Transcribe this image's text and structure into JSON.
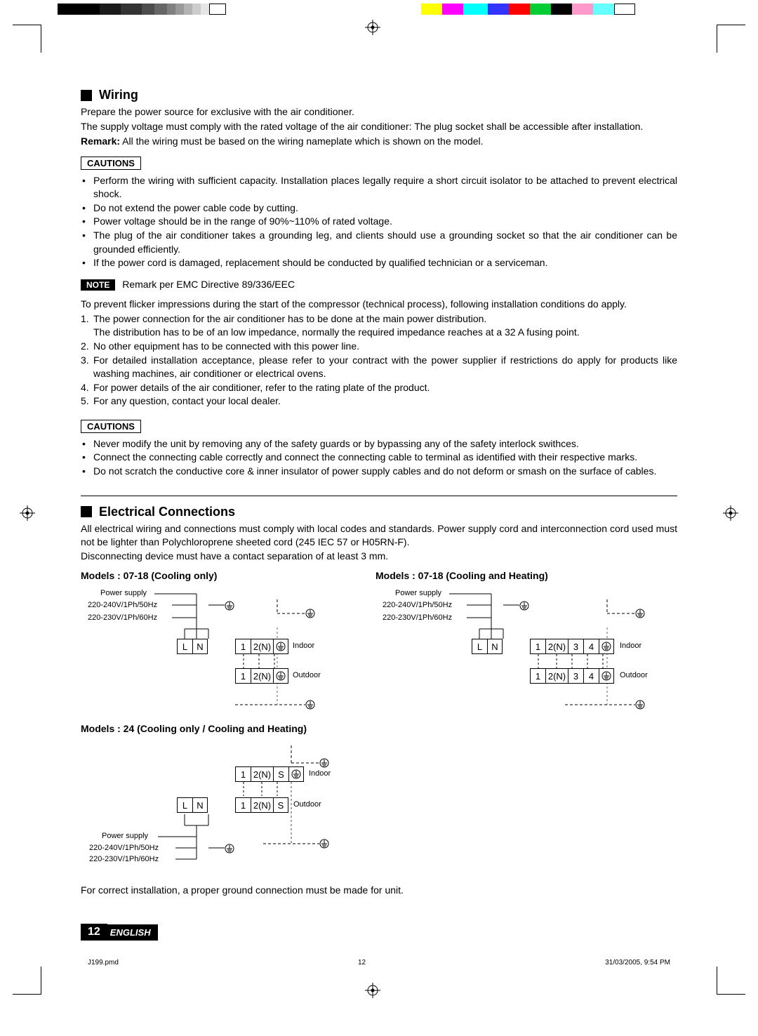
{
  "printer_marks": {
    "gray_swatches_widths": [
      60,
      30,
      30,
      18,
      18,
      12,
      12,
      12,
      12,
      12,
      24
    ],
    "gray_swatches_colors": [
      "#000000",
      "#1a1a1a",
      "#333333",
      "#4d4d4d",
      "#666666",
      "#808080",
      "#999999",
      "#b3b3b3",
      "#cccccc",
      "#e6e6e6",
      "#ffffff"
    ],
    "color_swatches_widths": [
      30,
      30,
      35,
      30,
      30,
      30,
      30,
      30,
      30,
      30
    ],
    "color_swatches_colors": [
      "#ffff00",
      "#ff00ff",
      "#00ffff",
      "#3333ff",
      "#ff0000",
      "#00cc33",
      "#000000",
      "#ff99cc",
      "#66ffff",
      "#ffffff"
    ]
  },
  "wiring": {
    "heading": "Wiring",
    "intro1": "Prepare the power source for exclusive with the air conditioner.",
    "intro2": "The supply voltage must comply with the rated voltage of the air conditioner: The plug socket shall be accessible after installation.",
    "remark_label": "Remark:",
    "remark_text": " All the wiring must be based on the wiring nameplate which is shown on the model.",
    "cautions_label": "CAUTIONS",
    "cautions1": [
      "Perform the wiring with sufficient capacity. Installation places legally require a short circuit isolator to be attached to prevent electrical shock.",
      "Do not extend the power cable code by cutting.",
      "Power voltage should be in the range of 90%~110% of rated voltage.",
      "The plug of the air conditioner takes a grounding leg, and clients should use a grounding socket so that the air conditioner can be grounded efficiently.",
      "If the power cord is damaged, replacement should be conducted by qualified technician or a serviceman."
    ],
    "note_label": "NOTE",
    "note_text": "Remark per EMC Directive 89/336/EEC",
    "emc_intro": "To prevent flicker impressions during the start of the compressor (technical process), following installation conditions do apply.",
    "emc_list": [
      "The power connection for the air conditioner has to be done at the main power distribution.",
      "No other equipment has to be connected with this power line.",
      "For detailed installation acceptance, please refer to your contract with the power supplier if restrictions do apply for products like washing machines, air conditioner or electrical ovens.",
      "For power details of the air conditioner, refer to the rating plate of the product.",
      "For any question, contact your local dealer."
    ],
    "emc_sub": "The distribution has to be of an low impedance, normally the required impedance reaches at a 32 A fusing point.",
    "cautions2": [
      "Never modify the unit by removing any of the safety guards or by bypassing any of the safety interlock swithces.",
      "Connect the connecting cable correctly and connect the connecting cable to terminal as identified with their respective marks.",
      "Do not scratch the conductive core & inner insulator of power supply cables and do not deform or smash on the surface of cables."
    ]
  },
  "electrical": {
    "heading": "Electrical Connections",
    "p1": "All electrical wiring and connections must comply with local codes and standards. Power supply cord and interconnection cord used must not be lighter than Polychloroprene sheeted cord (245 IEC 57 or H05RN-F).",
    "p2": "Disconnecting device must have a contact separation of at least 3 mm.",
    "model1_title": "Models : 07-18 (Cooling only)",
    "model2_title": "Models : 07-18 (Cooling and Heating)",
    "model3_title": "Models : 24 (Cooling only / Cooling and Heating)",
    "labels": {
      "power_supply": "Power supply",
      "v50": "220-240V/1Ph/50Hz",
      "v60": "220-230V/1Ph/60Hz",
      "indoor": "Indoor",
      "outdoor": "Outdoor",
      "L": "L",
      "N": "N",
      "1": "1",
      "2N": "2(N)",
      "3": "3",
      "4": "4",
      "S": "S"
    },
    "final": "For correct installation, a proper ground connection must be made for unit."
  },
  "footer": {
    "page_num": "12",
    "lang": "ENGLISH",
    "file": "J199.pmd",
    "pnum": "12",
    "date": "31/03/2005, 9:54 PM"
  }
}
